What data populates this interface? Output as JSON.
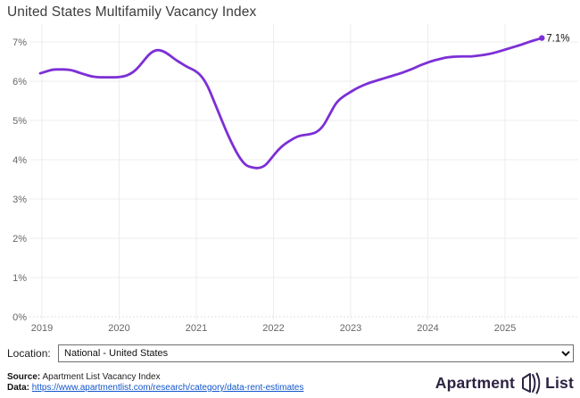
{
  "title": "United States Multifamily Vacancy Index",
  "chart_data": {
    "type": "line",
    "title": "United States Multifamily Vacancy Index",
    "series_name": "National - United States",
    "x_start": "2019-01",
    "x_end": "2025-07",
    "x_tick_labels": [
      "2019",
      "2020",
      "2021",
      "2022",
      "2023",
      "2024",
      "2025"
    ],
    "y_tick_labels": [
      "0%",
      "1%",
      "2%",
      "3%",
      "4%",
      "5%",
      "6%",
      "7%"
    ],
    "ylim": [
      0,
      7.5
    ],
    "grid": true,
    "line_color": "#7C2FD6",
    "end_label": "7.1%",
    "monthly_values_pct": [
      6.2,
      6.25,
      6.3,
      6.3,
      6.3,
      6.28,
      6.22,
      6.17,
      6.12,
      6.1,
      6.1,
      6.1,
      6.1,
      6.12,
      6.18,
      6.3,
      6.5,
      6.7,
      6.8,
      6.78,
      6.68,
      6.55,
      6.45,
      6.35,
      6.28,
      6.15,
      5.9,
      5.5,
      5.1,
      4.7,
      4.35,
      4.05,
      3.85,
      3.8,
      3.78,
      3.85,
      4.05,
      4.25,
      4.4,
      4.5,
      4.6,
      4.63,
      4.65,
      4.7,
      4.85,
      5.15,
      5.45,
      5.6,
      5.7,
      5.8,
      5.88,
      5.95,
      6.0,
      6.05,
      6.1,
      6.15,
      6.2,
      6.26,
      6.32,
      6.4,
      6.46,
      6.52,
      6.56,
      6.6,
      6.62,
      6.63,
      6.63,
      6.63,
      6.65,
      6.67,
      6.7,
      6.74,
      6.79,
      6.84,
      6.89,
      6.94,
      7.0,
      7.05,
      7.1
    ]
  },
  "colors": {
    "line": "#7C2FD6",
    "grid": "#ececec",
    "zero_line": "#d8d8d8",
    "axis_text": "#666666",
    "title_text": "#3c3c3c",
    "end_label_text": "#111111",
    "link": "#1155cc",
    "logo": "#2c2342",
    "logo_accent": "#8a2be2"
  },
  "controls": {
    "location_label": "Location:",
    "location_value": "National - United States"
  },
  "footer": {
    "source_label": "Source:",
    "source_text": " Apartment List Vacancy Index",
    "data_label": "Data:",
    "data_link": "https://www.apartmentlist.com/research/category/data-rent-estimates"
  },
  "logo": {
    "part1": "Apartment",
    "part2": "List"
  }
}
